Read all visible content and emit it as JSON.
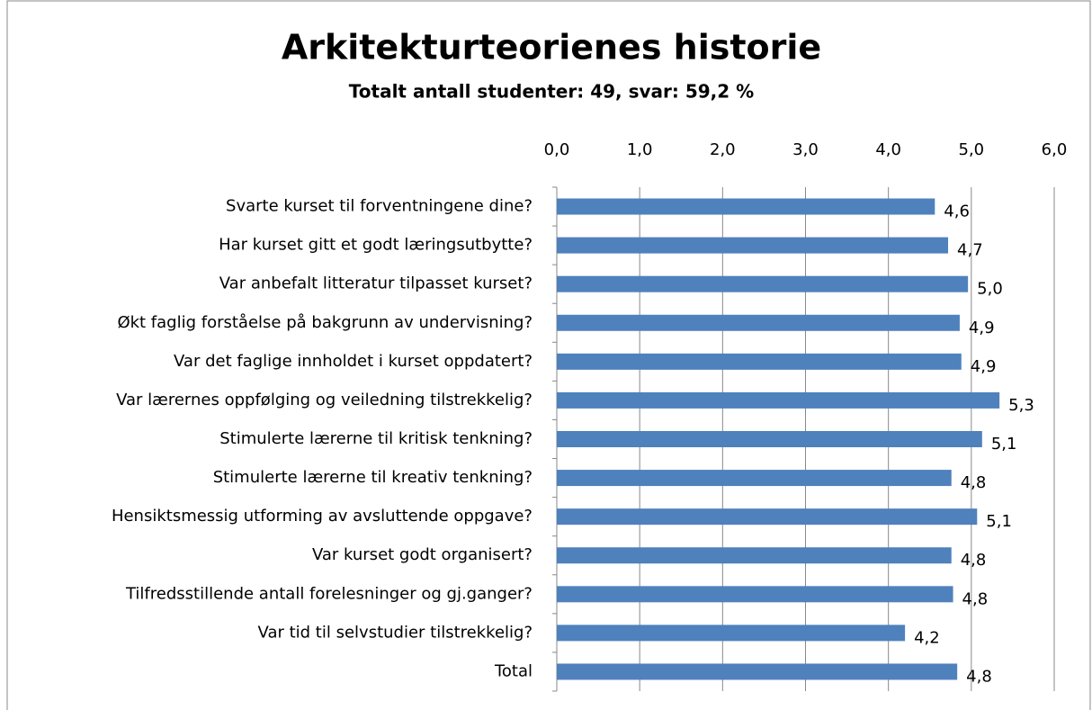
{
  "chart_data": {
    "type": "bar",
    "orientation": "horizontal",
    "title": "Arkitekturteorienes historie",
    "subtitle": "Totalt antall studenter: 49, svar: 59,2 %",
    "categories": [
      "Svarte kurset til forventningene dine?",
      "Har kurset gitt et godt læringsutbytte?",
      "Var anbefalt litteratur tilpasset kurset?",
      "Økt faglig forståelse på bakgrunn av undervisning?",
      "Var det faglige innholdet i kurset oppdatert?",
      "Var lærernes oppfølging og veiledning tilstrekkelig?",
      "Stimulerte lærerne til kritisk tenkning?",
      "Stimulerte lærerne til kreativ tenkning?",
      "Hensiktsmessig utforming av avsluttende oppgave?",
      "Var kurset godt organisert?",
      "Tilfredsstillende antall forelesninger og gj.ganger?",
      "Var tid til selvstudier tilstrekkelig?",
      "Total"
    ],
    "values": [
      4.56,
      4.72,
      4.96,
      4.86,
      4.88,
      5.34,
      5.13,
      4.76,
      5.07,
      4.76,
      4.78,
      4.2,
      4.83
    ],
    "value_labels": [
      "4,6",
      "4,7",
      "5,0",
      "4,9",
      "4,9",
      "5,3",
      "5,1",
      "4,8",
      "5,1",
      "4,8",
      "4,8",
      "4,2",
      "4,8"
    ],
    "color": "#4f81bd",
    "xlim": [
      0,
      6
    ],
    "xticks": [
      {
        "value": 0,
        "label": "0,0"
      },
      {
        "value": 1,
        "label": "1,0"
      },
      {
        "value": 2,
        "label": "2,0"
      },
      {
        "value": 3,
        "label": "3,0"
      },
      {
        "value": 4,
        "label": "4,0"
      },
      {
        "value": 5,
        "label": "5,0"
      },
      {
        "value": 6,
        "label": "6,0"
      }
    ],
    "grid": true
  }
}
